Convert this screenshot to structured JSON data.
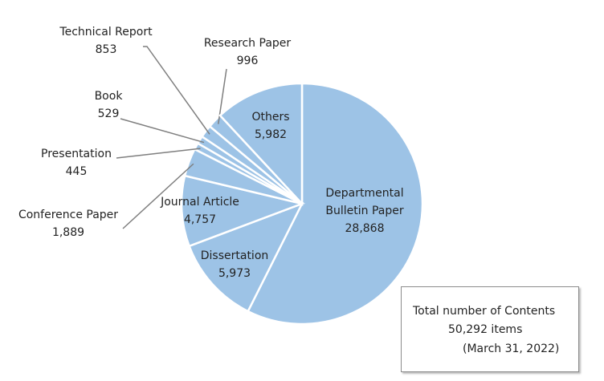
{
  "chart_data": {
    "type": "pie",
    "categories": [
      "Departmental Bulletin Paper",
      "Dissertation",
      "Journal Article",
      "Conference Paper",
      "Presentation",
      "Book",
      "Technical Report",
      "Research Paper",
      "Others"
    ],
    "values": [
      28868,
      5973,
      4757,
      1889,
      445,
      529,
      853,
      996,
      5982
    ],
    "value_labels": [
      "28,868",
      "5,973",
      "4,757",
      "1,889",
      "445",
      "529",
      "853",
      "996",
      "5,982"
    ],
    "color": "#9dc3e6",
    "annotations": [
      "Total number of Contents",
      "50,292 items",
      "(March 31, 2022)"
    ]
  }
}
